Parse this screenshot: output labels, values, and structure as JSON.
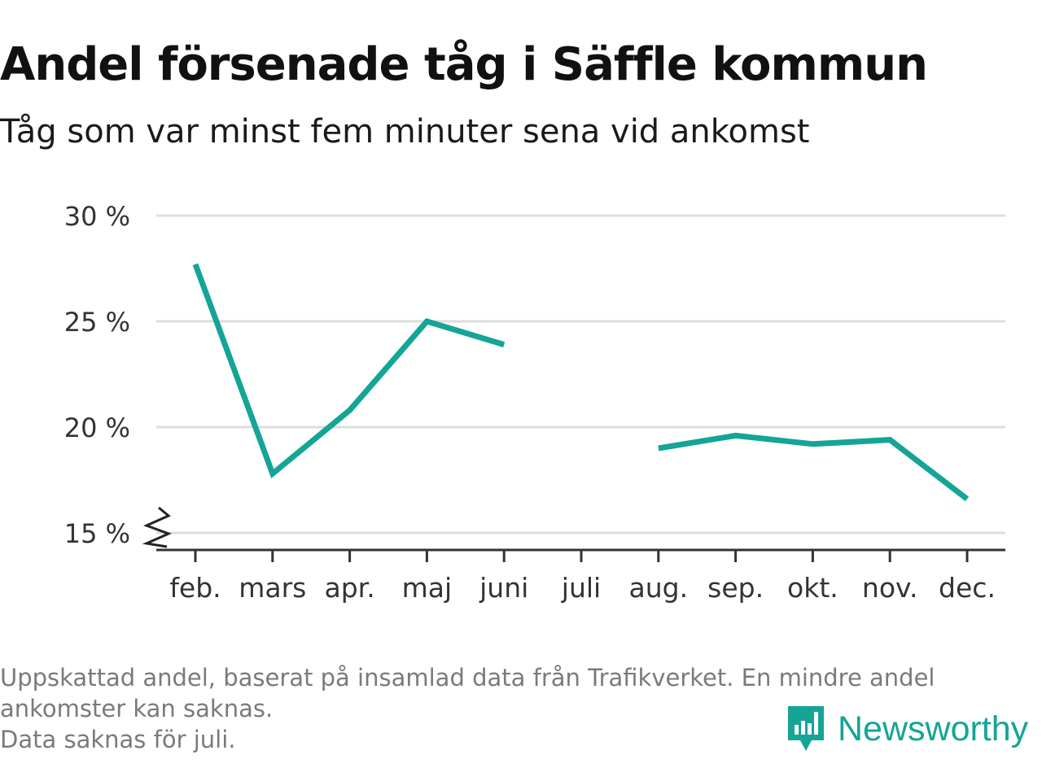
{
  "title": "Andel försenade tåg i Säffle kommun",
  "subtitle": "Tåg som var minst fem minuter sena vid ankomst",
  "footnote": {
    "line1": "Uppskattad andel, baserat på insamlad data från Trafikverket. En mindre andel",
    "line2": "ankomster kan saknas.",
    "line3": "Data saknas för juli."
  },
  "brand": {
    "name": "Newsworthy",
    "logo_icon": "bar-chart-speech-bubble-icon",
    "color": "#14a597"
  },
  "chart_data": {
    "type": "line",
    "categories": [
      "feb.",
      "mars",
      "apr.",
      "maj",
      "juni",
      "juli",
      "aug.",
      "sep.",
      "okt.",
      "nov.",
      "dec."
    ],
    "series": [
      {
        "values": [
          27.7,
          17.8,
          20.8,
          25.0,
          23.9,
          null,
          19.0,
          19.6,
          19.2,
          19.4,
          16.6
        ],
        "color": "#14a597"
      }
    ],
    "yticks": [
      15,
      20,
      25,
      30
    ],
    "ytick_labels": [
      "15 %",
      "20 %",
      "25 %",
      "30 %"
    ],
    "ylim": [
      15,
      30
    ],
    "y_axis_break": true,
    "grid": "horizontal",
    "gridline_color": "#dddddd"
  }
}
